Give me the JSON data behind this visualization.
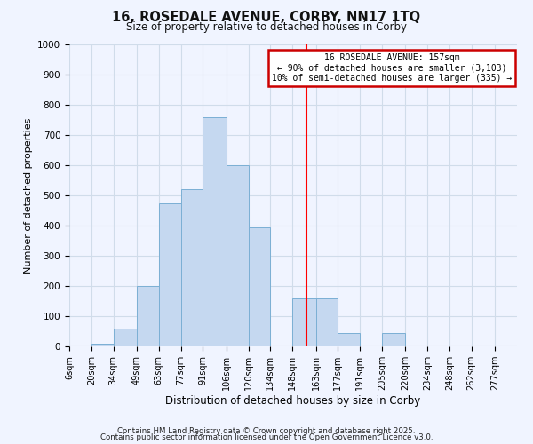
{
  "title": "16, ROSEDALE AVENUE, CORBY, NN17 1TQ",
  "subtitle": "Size of property relative to detached houses in Corby",
  "xlabel": "Distribution of detached houses by size in Corby",
  "ylabel": "Number of detached properties",
  "bin_edges": [
    6,
    20,
    34,
    49,
    63,
    77,
    91,
    106,
    120,
    134,
    148,
    163,
    177,
    191,
    205,
    220,
    234,
    248,
    262,
    277,
    291
  ],
  "bar_heights": [
    0,
    10,
    60,
    200,
    475,
    520,
    760,
    600,
    395,
    0,
    160,
    160,
    45,
    0,
    45,
    0,
    0,
    0,
    0,
    0
  ],
  "bar_color": "#c5d8f0",
  "bar_edge_color": "#7bafd4",
  "red_line_x": 157,
  "ylim": [
    0,
    1000
  ],
  "yticks": [
    0,
    100,
    200,
    300,
    400,
    500,
    600,
    700,
    800,
    900,
    1000
  ],
  "annotation_title": "16 ROSEDALE AVENUE: 157sqm",
  "annotation_line1": "← 90% of detached houses are smaller (3,103)",
  "annotation_line2": "10% of semi-detached houses are larger (335) →",
  "annotation_box_color": "#ffffff",
  "annotation_box_edge_color": "#cc0000",
  "grid_color": "#d0dcea",
  "bg_color": "#f0f4ff",
  "footnote1": "Contains HM Land Registry data © Crown copyright and database right 2025.",
  "footnote2": "Contains public sector information licensed under the Open Government Licence v3.0."
}
